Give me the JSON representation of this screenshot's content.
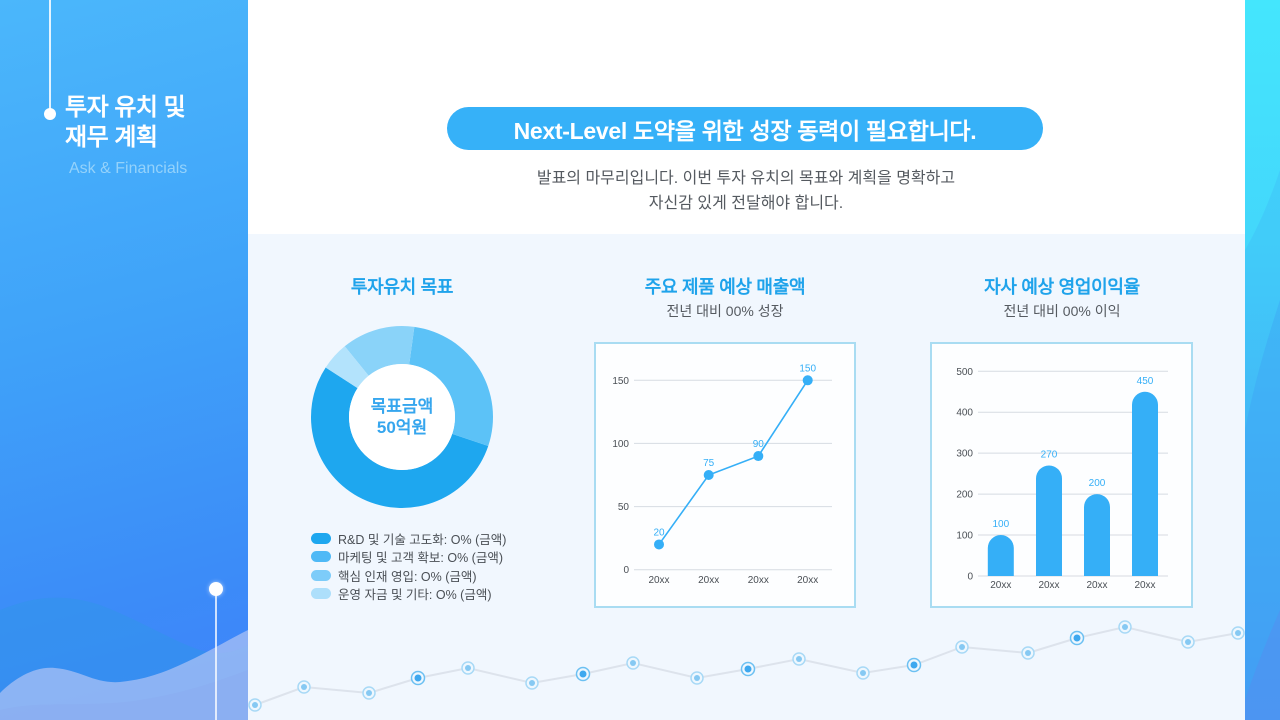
{
  "sidebar": {
    "title_line1": "투자 유치 및",
    "title_line2": "재무 계획",
    "subtitle": "Ask & Financials"
  },
  "header": {
    "headline": "Next-Level 도약을 위한 성장 동력이 필요합니다.",
    "description_line1": "발표의 마무리입니다. 이번 투자 유치의 목표와 계획을 명확하고",
    "description_line2": "자신감 있게 전달해야 합니다."
  },
  "sections": {
    "investment": {
      "title": "투자유치 목표",
      "center_label_line1": "목표금액",
      "center_label_line2": "50억원",
      "legend": [
        {
          "label": "R&D 및 기술 고도화: O% (금액)",
          "color": "#1ea7ef"
        },
        {
          "label": "마케팅 및 고객 확보: O% (금액)",
          "color": "#4fb9f6"
        },
        {
          "label": "핵심 인재 영입: O% (금액)",
          "color": "#7dccf9"
        },
        {
          "label": "운영 자금 및 기타: O% (금액)",
          "color": "#addffb"
        }
      ]
    },
    "revenue": {
      "title": "주요 제품 예상 매출액",
      "subtitle": "전년 대비 00% 성장"
    },
    "margin": {
      "title": "자사 예상 영업이익율",
      "subtitle": "전년 대비 00% 이익"
    }
  },
  "colors": {
    "accent": "#36b1f8",
    "title_blue": "#1fa3eb",
    "series_blue": "#35aff7",
    "chart_border": "#a9dcf2",
    "background_light": "#f1f7fe"
  },
  "chart_data": [
    {
      "type": "pie",
      "title": "투자유치 목표",
      "center_label": "목표금액 50억원",
      "categories": [
        "R&D 및 기술 고도화",
        "마케팅 및 고객 확보",
        "핵심 인재 영입",
        "운영 자금 및 기타"
      ],
      "values": [
        54,
        28,
        13,
        5
      ],
      "colors": [
        "#1ea7ef",
        "#5cc2f7",
        "#8ad3f9",
        "#b3e3fc"
      ],
      "donut": true,
      "start_angle_deg": 303,
      "direction": "counterclockwise",
      "legend_position": "bottom"
    },
    {
      "type": "line",
      "title": "주요 제품 예상 매출액",
      "subtitle": "전년 대비 00% 성장",
      "categories": [
        "20xx",
        "20xx",
        "20xx",
        "20xx"
      ],
      "values": [
        20,
        75,
        90,
        150
      ],
      "data_labels": [
        "20",
        "75",
        "90",
        "150"
      ],
      "yticks": [
        0,
        50,
        100,
        150
      ],
      "ylim": [
        0,
        150
      ],
      "xlabel": "",
      "ylabel": "",
      "grid": true,
      "color": "#35aff7"
    },
    {
      "type": "bar",
      "title": "자사 예상 영업이익율",
      "subtitle": "전년 대비 00% 이익",
      "categories": [
        "20xx",
        "20xx",
        "20xx",
        "20xx"
      ],
      "values": [
        100,
        270,
        200,
        450
      ],
      "data_labels": [
        "100",
        "270",
        "200",
        "450"
      ],
      "yticks": [
        0,
        100,
        200,
        300,
        400,
        500
      ],
      "ylim": [
        0,
        500
      ],
      "xlabel": "",
      "ylabel": "",
      "grid": true,
      "color": "#35aff7"
    }
  ]
}
